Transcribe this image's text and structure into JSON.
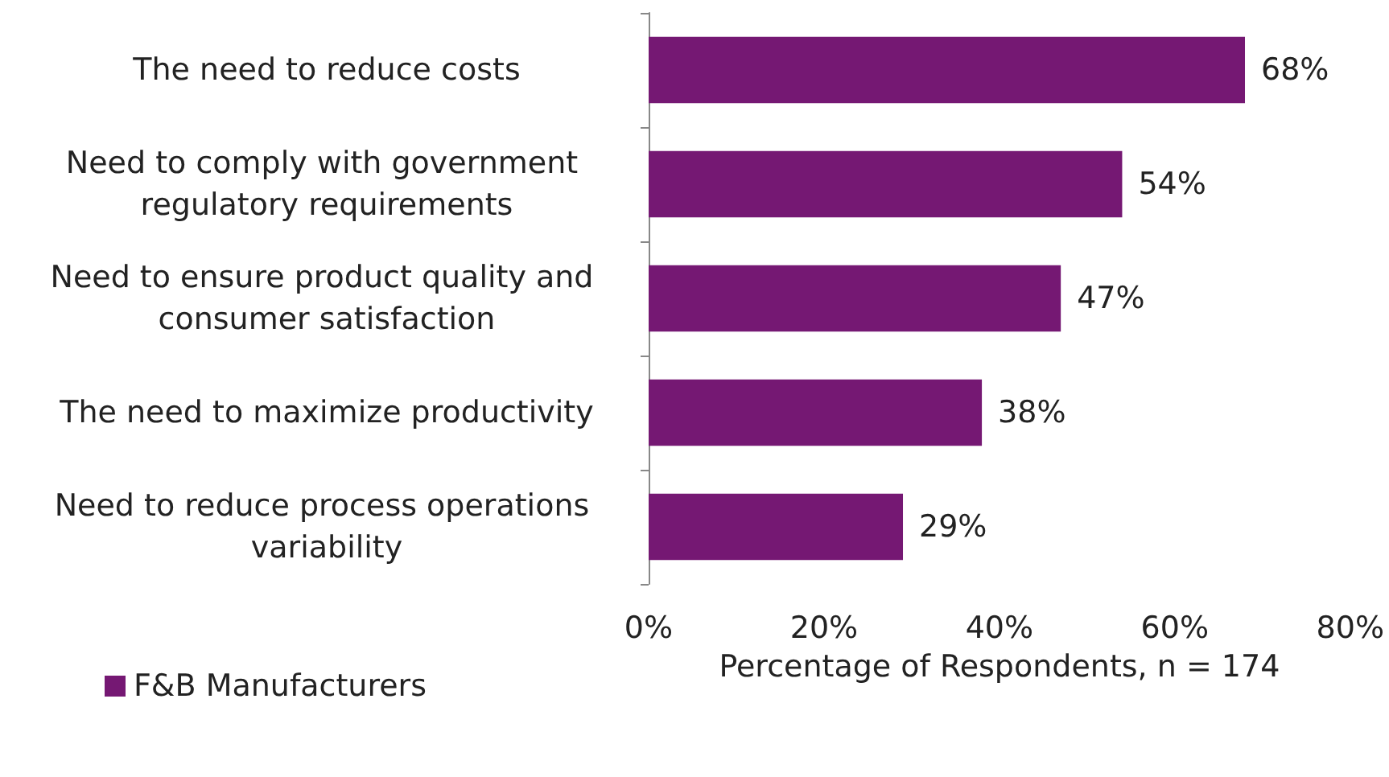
{
  "chart_data": {
    "type": "bar",
    "orientation": "horizontal",
    "xlabel": "Percentage of Respondents, n = 174",
    "categories": [
      "The need to reduce costs",
      "Need to comply with government regulatory requirements",
      "Need to ensure product quality and consumer satisfaction",
      "The need to maximize productivity",
      "Need to reduce process operations variability"
    ],
    "series": [
      {
        "name": "F&B Manufacturers",
        "color": "#751873",
        "values": [
          68,
          54,
          47,
          38,
          29
        ],
        "value_labels": [
          "68%",
          "54%",
          "47%",
          "38%",
          "29%"
        ]
      }
    ],
    "xlim": [
      0,
      80
    ],
    "xticks": [
      {
        "value": 0,
        "label": "0%"
      },
      {
        "value": 20,
        "label": "20%"
      },
      {
        "value": 40,
        "label": "40%"
      },
      {
        "value": 60,
        "label": "60%"
      },
      {
        "value": 80,
        "label": "80%"
      }
    ],
    "grid": false,
    "legend": "bottom left"
  }
}
